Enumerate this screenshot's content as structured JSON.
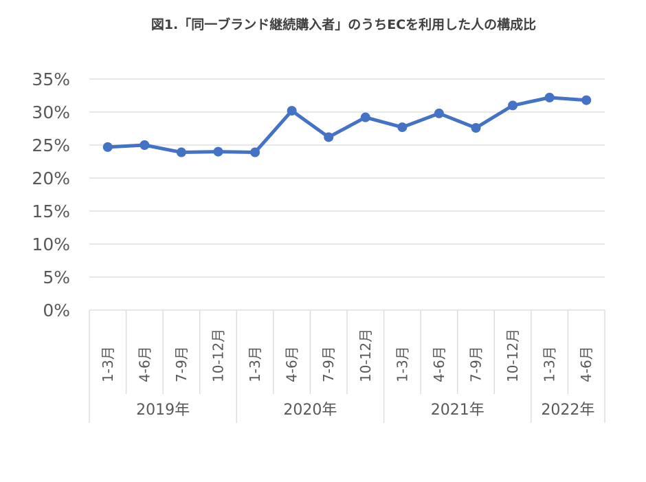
{
  "chart_data": {
    "type": "line",
    "title": "図1.「同一ブランド継続購入者」のうちECを利用した人の構成比",
    "xlabel": "",
    "ylabel": "",
    "ylim": [
      0,
      35
    ],
    "yticks": [
      "0%",
      "5%",
      "10%",
      "15%",
      "20%",
      "25%",
      "30%",
      "35%"
    ],
    "ytick_values": [
      0,
      5,
      10,
      15,
      20,
      25,
      30,
      35
    ],
    "grid": true,
    "legend": "none",
    "line_color": "#4472C4",
    "categories": [
      "1-3月",
      "4-6月",
      "7-9月",
      "10-12月",
      "1-3月",
      "4-6月",
      "7-9月",
      "10-12月",
      "1-3月",
      "4-6月",
      "7-9月",
      "10-12月",
      "1-3月",
      "4-6月"
    ],
    "groups": [
      {
        "label": "2019年",
        "count": 4
      },
      {
        "label": "2020年",
        "count": 4
      },
      {
        "label": "2021年",
        "count": 4
      },
      {
        "label": "2022年",
        "count": 2
      }
    ],
    "series": [
      {
        "values": [
          24.7,
          25.0,
          23.9,
          24.0,
          23.9,
          30.2,
          26.2,
          29.2,
          27.7,
          29.8,
          27.6,
          31.0,
          32.2,
          31.8
        ]
      }
    ]
  }
}
